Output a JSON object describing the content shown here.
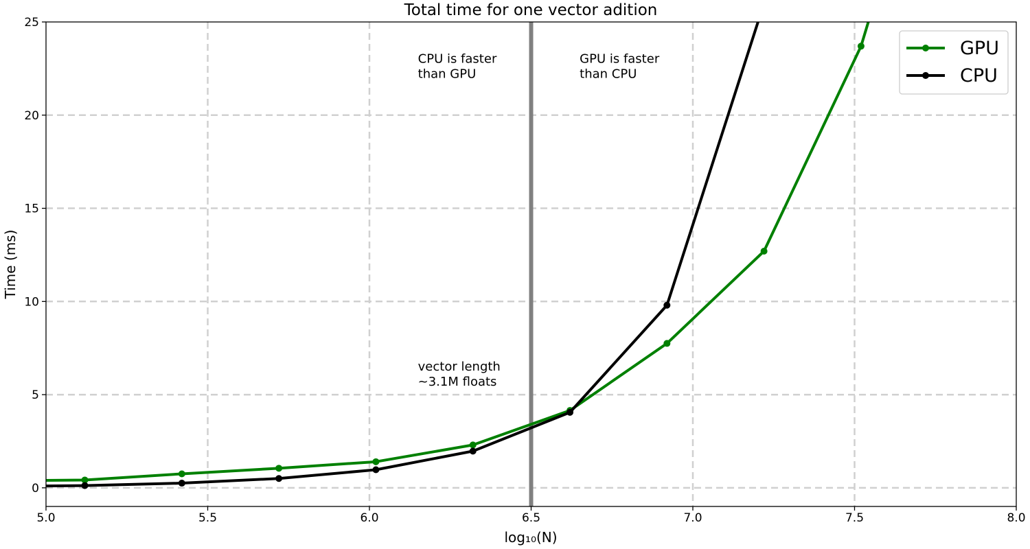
{
  "chart_data": {
    "type": "line",
    "title": "Total time for one vector adition",
    "xlabel": "log₁₀(N)",
    "ylabel": "Time (ms)",
    "xlim": [
      5.0,
      8.0
    ],
    "ylim": [
      -1,
      25
    ],
    "xticks": [
      "5.0",
      "5.5",
      "6.0",
      "6.5",
      "7.0",
      "7.5",
      "8.0"
    ],
    "yticks": [
      "0",
      "5",
      "10",
      "15",
      "20",
      "25"
    ],
    "grid": true,
    "legend_position": "top-right",
    "vline": {
      "x": 6.5,
      "color": "#808080"
    },
    "annotations": [
      {
        "id": "cpu-faster",
        "x": 6.15,
        "y": 22.8,
        "lines": [
          "CPU is faster",
          "than GPU"
        ]
      },
      {
        "id": "gpu-faster",
        "x": 6.65,
        "y": 22.8,
        "lines": [
          "GPU is faster",
          "than CPU"
        ]
      },
      {
        "id": "vector-length",
        "x": 6.15,
        "y": 6.3,
        "lines": [
          "vector length",
          "~3.1M floats"
        ]
      }
    ],
    "series": [
      {
        "name": "GPU",
        "color": "#008000",
        "x": [
          5.0,
          5.12,
          5.42,
          5.72,
          6.02,
          6.32,
          6.62,
          6.92,
          7.22,
          7.52,
          7.56
        ],
        "y": [
          0.4,
          0.42,
          0.75,
          1.05,
          1.4,
          2.3,
          4.15,
          7.75,
          12.7,
          23.7,
          26.0
        ]
      },
      {
        "name": "CPU",
        "color": "#000000",
        "x": [
          5.0,
          5.12,
          5.42,
          5.72,
          6.02,
          6.32,
          6.62,
          6.92,
          7.22
        ],
        "y": [
          0.1,
          0.12,
          0.25,
          0.5,
          0.97,
          1.97,
          4.05,
          9.8,
          26.0
        ]
      }
    ]
  }
}
